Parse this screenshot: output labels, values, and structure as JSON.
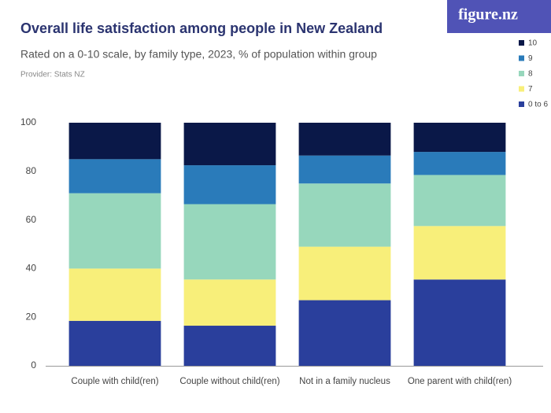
{
  "logo": "figure.nz",
  "chart_data": {
    "type": "stacked_bar",
    "title": "Overall life satisfaction among people in New Zealand",
    "subtitle": "Rated on a 0-10 scale, by family type, 2023, % of population within group",
    "provider": "Provider: Stats NZ",
    "categories": [
      "Couple with child(ren)",
      "Couple without child(ren)",
      "Not in a family nucleus",
      "One parent with child(ren)"
    ],
    "series": [
      {
        "name": "0 to 6",
        "color": "#2a3f9c",
        "values": [
          18.5,
          16.5,
          27,
          35.5
        ]
      },
      {
        "name": "7",
        "color": "#f8ef7a",
        "values": [
          21.5,
          19,
          22,
          22
        ]
      },
      {
        "name": "8",
        "color": "#97d7bc",
        "values": [
          31,
          31,
          26,
          21
        ]
      },
      {
        "name": "9",
        "color": "#2a7bba",
        "values": [
          14,
          16,
          11.5,
          9.5
        ]
      },
      {
        "name": "10",
        "color": "#0a1848",
        "values": [
          15,
          17.5,
          13.5,
          12
        ]
      }
    ],
    "ylim": [
      0,
      100
    ],
    "yticks": [
      0,
      20,
      40,
      60,
      80,
      100
    ],
    "grid": false
  }
}
